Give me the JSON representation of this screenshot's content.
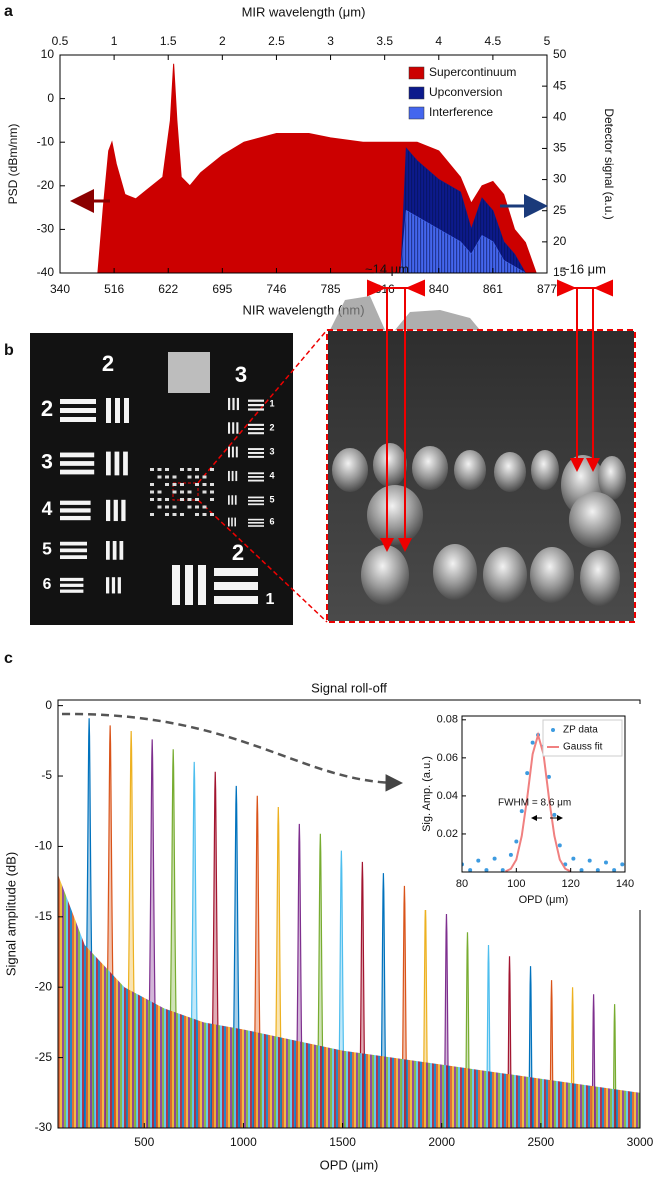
{
  "panel_labels": [
    "a",
    "b",
    "c"
  ],
  "chart_data": [
    {
      "type": "area",
      "top_xlabel": "MIR wavelength (μm)",
      "xlabel": "NIR wavelength (nm)",
      "ylabel": "PSD (dBm/nm)",
      "y2label": "Detector signal (a.u.)",
      "xlim": [
        0.5,
        5
      ],
      "xticks": [
        0.5,
        1,
        1.5,
        2,
        2.5,
        3,
        3.5,
        4,
        4.5,
        5
      ],
      "bottom_xticks": [
        340,
        516,
        622,
        695,
        746,
        785,
        816,
        840,
        861,
        877
      ],
      "ylim": [
        -40,
        10
      ],
      "yticks": [
        -40,
        -30,
        -20,
        -10,
        0,
        10
      ],
      "y2lim": [
        15,
        50
      ],
      "y2ticks": [
        15,
        20,
        25,
        30,
        35,
        40,
        45,
        50
      ],
      "legend": "upper right",
      "series": [
        {
          "name": "Supercontinuum",
          "color": "#cc0000",
          "x": [
            0.85,
            0.9,
            0.95,
            0.98,
            1.02,
            1.1,
            1.2,
            1.3,
            1.45,
            1.52,
            1.55,
            1.58,
            1.62,
            1.7,
            1.8,
            2.0,
            2.2,
            2.5,
            2.8,
            3.0,
            3.3,
            3.6,
            3.8,
            4.0,
            4.2,
            4.3,
            4.4,
            4.5,
            4.6,
            4.7,
            4.8,
            4.9
          ],
          "values": [
            -40,
            -25,
            -12,
            -10,
            -15,
            -22,
            -23,
            -21,
            -18,
            -5,
            8,
            -5,
            -18,
            -20,
            -17,
            -13,
            -10,
            -8,
            -8,
            -9,
            -10,
            -10,
            -10,
            -12,
            -18,
            -24,
            -20,
            -19,
            -22,
            -30,
            -33,
            -40
          ]
        },
        {
          "name": "Upconversion",
          "color": "#0c1a8c",
          "axis": "y2",
          "x": [
            3.65,
            3.7,
            3.75,
            3.8,
            4.0,
            4.2,
            4.3,
            4.4,
            4.5,
            4.6,
            4.7,
            4.8
          ],
          "values": [
            15,
            35,
            34,
            33,
            30,
            28,
            22,
            27,
            25,
            20,
            18,
            15
          ]
        },
        {
          "name": "Interference",
          "color": "#4466ee",
          "axis": "y2",
          "x": [
            3.65,
            3.7,
            3.8,
            4.0,
            4.2,
            4.3,
            4.4,
            4.5,
            4.6,
            4.7,
            4.8
          ],
          "values": [
            15,
            25,
            24,
            22,
            20,
            18,
            21,
            20,
            17,
            16,
            15
          ]
        }
      ]
    },
    {
      "type": "peaks",
      "title": "Signal roll-off",
      "xlabel": "OPD (μm)",
      "ylabel": "Signal amplitude (dB)",
      "xlim": [
        65,
        3000
      ],
      "xticks": [
        500,
        1000,
        1500,
        2000,
        2500,
        3000
      ],
      "ylim": [
        -30,
        0.4
      ],
      "yticks": [
        -30,
        -25,
        -20,
        -15,
        -10,
        -5,
        0
      ],
      "colors": [
        "#0072bd",
        "#d95319",
        "#edb120",
        "#7e2f8e",
        "#77ac30",
        "#4dbeee",
        "#a2142f"
      ],
      "x": [
        222,
        328,
        434,
        540,
        646,
        752,
        858,
        964,
        1070,
        1176,
        1282,
        1388,
        1494,
        1600,
        1706,
        1812,
        1918,
        2024,
        2130,
        2236,
        2342,
        2448,
        2554,
        2660,
        2766,
        2872
      ],
      "values": [
        -0.9,
        -1.4,
        -1.8,
        -2.4,
        -3.1,
        -4.0,
        -4.7,
        -5.7,
        -6.4,
        -7.2,
        -8.4,
        -9.1,
        -10.3,
        -11.1,
        -11.9,
        -12.8,
        -14.0,
        -14.8,
        -16.1,
        -17.0,
        -17.8,
        -18.5,
        -19.5,
        -20.0,
        -20.5,
        -21.2
      ],
      "noise_floor": {
        "x": [
          65,
          200,
          400,
          600,
          800,
          1000,
          1500,
          2000,
          2500,
          3000
        ],
        "values": [
          -12,
          -17,
          -20,
          -21.5,
          -22.5,
          -23,
          -24.5,
          -25.5,
          -26.5,
          -27.5
        ]
      }
    },
    {
      "type": "scatter",
      "xlabel": "OPD (μm)",
      "ylabel": "Sig. Amp. (a.u.)",
      "xlim": [
        80,
        140
      ],
      "xticks": [
        80,
        100,
        120,
        140
      ],
      "ylim": [
        0,
        0.082
      ],
      "yticks": [
        0.02,
        0.04,
        0.06,
        0.08
      ],
      "legend": "upper right",
      "annotation": "FWHM = 8.6 μm",
      "series": [
        {
          "name": "ZP data",
          "color": "#3d9be0",
          "style": "markers",
          "x": [
            80,
            83,
            86,
            89,
            92,
            95,
            98,
            100,
            102,
            104,
            106,
            108,
            110,
            112,
            114,
            116,
            118,
            121,
            124,
            127,
            130,
            133,
            136,
            139
          ],
          "values": [
            0.004,
            0.001,
            0.006,
            0.001,
            0.007,
            0.001,
            0.009,
            0.016,
            0.032,
            0.052,
            0.068,
            0.072,
            0.066,
            0.05,
            0.03,
            0.014,
            0.004,
            0.007,
            0.001,
            0.006,
            0.001,
            0.005,
            0.001,
            0.004
          ]
        },
        {
          "name": "Gauss fit",
          "color": "#f08080",
          "style": "line",
          "x": [
            96,
            98,
            100,
            102,
            104,
            106,
            108,
            110,
            112,
            114,
            116,
            118,
            120
          ],
          "values": [
            0.0003,
            0.0017,
            0.0065,
            0.019,
            0.039,
            0.062,
            0.072,
            0.062,
            0.039,
            0.019,
            0.0065,
            0.0017,
            0.0003
          ]
        }
      ]
    }
  ],
  "panel_b": {
    "group_labels": [
      "2",
      "3",
      "2"
    ],
    "element_labels": [
      "2",
      "3",
      "4",
      "5",
      "6"
    ],
    "small_labels": [
      "1",
      "2",
      "3",
      "4",
      "5",
      "6"
    ],
    "bottom_element_label": "1",
    "annotations": [
      "~14 μm",
      "~16 μm"
    ]
  }
}
